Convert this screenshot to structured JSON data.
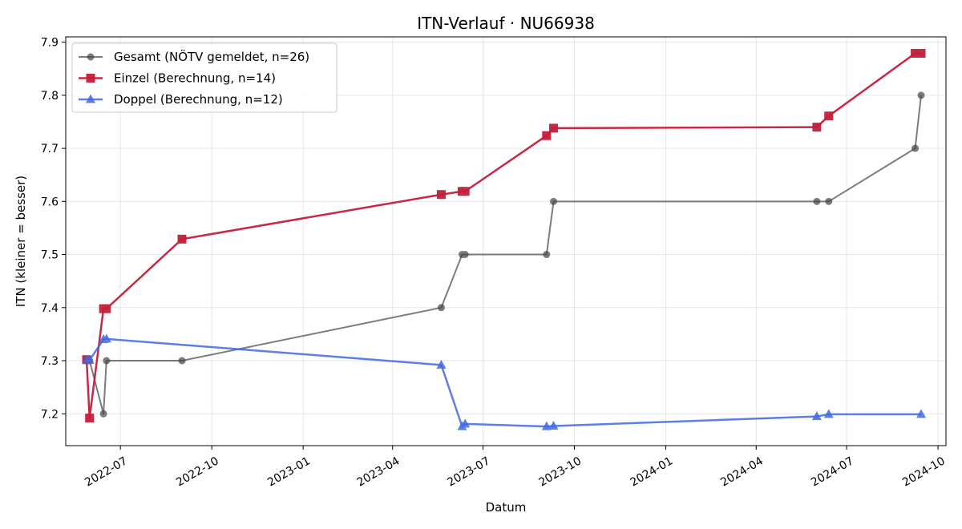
{
  "chart_data": {
    "type": "line",
    "title": "ITN-Verlauf · NU66938",
    "xlabel": "Datum",
    "ylabel": "ITN  (kleiner = besser)",
    "x_tick_labels": [
      "2022-07",
      "2022-10",
      "2023-01",
      "2023-04",
      "2023-07",
      "2023-10",
      "2024-01",
      "2024-04",
      "2024-07",
      "2024-10"
    ],
    "x_tick_dates": [
      "2022-07-01",
      "2022-10-01",
      "2023-01-01",
      "2023-04-01",
      "2023-07-01",
      "2023-10-01",
      "2024-01-01",
      "2024-04-01",
      "2024-07-01",
      "2024-10-01"
    ],
    "xlim": [
      "2022-05-07",
      "2024-10-09"
    ],
    "y_tick_labels": [
      "7.2",
      "7.3",
      "7.4",
      "7.5",
      "7.6",
      "7.7",
      "7.8",
      "7.9"
    ],
    "y_ticks": [
      7.2,
      7.3,
      7.4,
      7.5,
      7.6,
      7.7,
      7.8,
      7.9
    ],
    "ylim": [
      7.14,
      7.91
    ],
    "grid": true,
    "legend_position": "top-left",
    "series": [
      {
        "name": "Gesamt (NÖTV gemeldet, n=26)",
        "color": "#444444",
        "marker": "circle",
        "x": [
          "2022-05-28",
          "2022-05-31",
          "2022-06-14",
          "2022-06-17",
          "2022-09-01",
          "2023-05-20",
          "2023-06-10",
          "2023-06-13",
          "2023-09-03",
          "2023-09-10",
          "2024-06-01",
          "2024-06-13",
          "2024-09-08",
          "2024-09-14"
        ],
        "y": [
          7.3,
          7.3,
          7.2,
          7.3,
          7.3,
          7.4,
          7.5,
          7.5,
          7.5,
          7.6,
          7.6,
          7.6,
          7.7,
          7.8
        ]
      },
      {
        "name": "Einzel (Berechnung, n=14)",
        "color": "#c41e3a",
        "marker": "square",
        "x": [
          "2022-05-28",
          "2022-05-31",
          "2022-06-14",
          "2022-06-17",
          "2022-09-01",
          "2023-05-20",
          "2023-06-10",
          "2023-06-13",
          "2023-09-03",
          "2023-09-10",
          "2024-06-01",
          "2024-06-13",
          "2024-09-08",
          "2024-09-14"
        ],
        "y": [
          7.302,
          7.192,
          7.398,
          7.398,
          7.529,
          7.613,
          7.619,
          7.619,
          7.724,
          7.738,
          7.74,
          7.761,
          7.879,
          7.879
        ]
      },
      {
        "name": "Doppel (Berechnung, n=12)",
        "color": "#4169e1",
        "marker": "triangle",
        "x": [
          "2022-05-28",
          "2022-05-31",
          "2022-06-14",
          "2022-06-17",
          "2023-05-20",
          "2023-06-10",
          "2023-06-13",
          "2023-09-03",
          "2023-09-10",
          "2024-06-01",
          "2024-06-13",
          "2024-09-14"
        ],
        "y": [
          7.301,
          7.301,
          7.34,
          7.341,
          7.292,
          7.176,
          7.181,
          7.176,
          7.177,
          7.195,
          7.199,
          7.199
        ]
      }
    ]
  }
}
